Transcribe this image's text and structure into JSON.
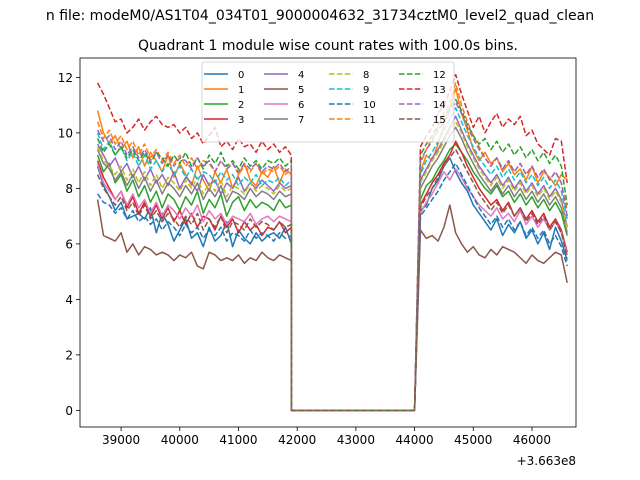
{
  "figure": {
    "suptitle": "n file: modeM0/AS1T04_034T01_9000004632_31734cztM0_level2_quad_clean",
    "title": "Quadrant 1 module wise count rates with 100.0s bins.",
    "offset_label": "+3.663e8"
  },
  "chart_data": {
    "type": "line",
    "title": "Quadrant 1 module wise count rates with 100.0s bins.",
    "xlabel": "",
    "ylabel": "",
    "x_offset": 366300000,
    "xlim": [
      38300,
      46750
    ],
    "ylim": [
      -0.6,
      12.7
    ],
    "x_ticks": [
      39000,
      40000,
      41000,
      42000,
      43000,
      44000,
      45000,
      46000
    ],
    "x_tick_labels": [
      "39000",
      "40000",
      "41000",
      "42000",
      "43000",
      "44000",
      "45000",
      "46000"
    ],
    "y_ticks": [
      0,
      2,
      4,
      6,
      8,
      10,
      12
    ],
    "y_tick_labels": [
      "0",
      "2",
      "4",
      "6",
      "8",
      "10",
      "12"
    ],
    "x_start": 38600,
    "x_step": 100,
    "gap_zero_from": 41900,
    "gap_zero_to": 44000,
    "legend_position": "top-center",
    "series": [
      {
        "name": "0",
        "color": "#1f77b4",
        "dash": "solid",
        "pre": [
          8.8,
          8.1,
          7.7,
          7.2,
          7.5,
          6.9,
          7.0,
          7.1,
          6.9,
          7.3,
          6.4,
          7.1,
          6.7,
          6.1,
          6.5,
          6.9,
          6.2,
          6.4,
          5.9,
          6.6,
          6.1,
          6.3,
          6.8,
          5.9,
          6.5,
          6.2,
          6.0,
          6.4,
          6.1,
          6.3,
          6.4,
          6.2,
          6.6,
          6.0
        ],
        "post": [
          7.2,
          7.4,
          8.0,
          8.3,
          8.8,
          9.1,
          8.6,
          8.2,
          7.9,
          7.4,
          7.1,
          6.8,
          6.5,
          6.9,
          6.3,
          6.7,
          6.4,
          6.8,
          6.2,
          6.5,
          6.0,
          6.4,
          5.8,
          6.6,
          6.1,
          5.4
        ]
      },
      {
        "name": "1",
        "color": "#ff7f0e",
        "dash": "solid",
        "pre": [
          10.8,
          10.0,
          9.6,
          9.9,
          9.4,
          9.7,
          9.1,
          9.5,
          8.8,
          9.3,
          9.0,
          8.6,
          9.2,
          8.4,
          8.9,
          8.5,
          8.1,
          8.8,
          8.3,
          7.9,
          8.6,
          8.2,
          8.7,
          8.0,
          8.5,
          8.9,
          8.3,
          8.1,
          8.6,
          8.4,
          8.8,
          8.2,
          8.7,
          8.5
        ],
        "post": [
          8.6,
          9.2,
          9.0,
          9.6,
          10.3,
          10.9,
          11.6,
          10.7,
          10.1,
          9.4,
          9.0,
          9.3,
          8.9,
          9.1,
          8.6,
          8.9,
          8.5,
          8.7,
          8.3,
          8.8,
          8.2,
          8.6,
          8.4,
          8.1,
          8.5,
          8.3
        ]
      },
      {
        "name": "2",
        "color": "#2ca02c",
        "dash": "solid",
        "pre": [
          9.2,
          8.6,
          8.9,
          8.2,
          8.5,
          7.9,
          8.3,
          7.7,
          8.1,
          7.5,
          7.9,
          7.3,
          7.8,
          7.6,
          7.2,
          7.7,
          7.4,
          7.9,
          7.1,
          7.6,
          7.3,
          7.8,
          7.0,
          7.5,
          7.7,
          7.2,
          7.6,
          7.3,
          7.5,
          7.4,
          7.2,
          7.6,
          7.3,
          7.4
        ],
        "post": [
          7.6,
          8.1,
          8.3,
          8.7,
          9.0,
          9.4,
          9.6,
          9.3,
          9.0,
          8.6,
          8.3,
          8.0,
          7.8,
          8.1,
          7.7,
          7.9,
          7.5,
          7.8,
          7.4,
          7.7,
          7.3,
          7.6,
          7.2,
          7.5,
          7.1,
          6.3
        ]
      },
      {
        "name": "3",
        "color": "#d62728",
        "dash": "solid",
        "pre": [
          9.0,
          8.4,
          8.0,
          7.6,
          7.9,
          7.3,
          7.7,
          7.1,
          7.5,
          7.0,
          7.4,
          6.9,
          7.3,
          6.8,
          7.2,
          6.7,
          7.1,
          6.6,
          7.0,
          6.9,
          6.5,
          7.0,
          6.6,
          6.9,
          6.4,
          6.8,
          6.5,
          6.7,
          6.3,
          6.6,
          6.5,
          6.8,
          6.4,
          6.6
        ],
        "post": [
          7.4,
          7.8,
          8.2,
          8.5,
          8.9,
          9.2,
          9.7,
          9.3,
          8.8,
          8.4,
          8.0,
          7.7,
          7.4,
          7.6,
          7.2,
          7.5,
          7.0,
          7.3,
          6.9,
          7.2,
          6.8,
          7.1,
          6.6,
          6.9,
          6.5,
          5.7
        ]
      },
      {
        "name": "4",
        "color": "#9467bd",
        "dash": "solid",
        "pre": [
          9.6,
          9.2,
          8.8,
          9.1,
          8.6,
          8.9,
          8.4,
          8.8,
          8.3,
          8.7,
          8.2,
          8.5,
          8.1,
          8.6,
          8.0,
          8.4,
          8.2,
          7.9,
          8.5,
          8.1,
          8.3,
          7.8,
          8.2,
          8.0,
          8.4,
          7.9,
          8.2,
          8.0,
          8.3,
          8.1,
          7.9,
          8.2,
          8.0,
          8.1
        ],
        "post": [
          8.3,
          8.7,
          9.1,
          9.4,
          9.8,
          10.2,
          10.6,
          10.1,
          9.6,
          9.2,
          8.8,
          8.5,
          8.2,
          8.5,
          8.1,
          8.4,
          8.0,
          8.3,
          7.9,
          8.2,
          7.8,
          8.1,
          7.7,
          8.0,
          7.6,
          6.6
        ]
      },
      {
        "name": "5",
        "color": "#8c564b",
        "dash": "solid",
        "pre": [
          7.6,
          6.3,
          6.2,
          6.1,
          6.4,
          5.7,
          6.0,
          5.6,
          5.9,
          5.8,
          5.6,
          5.7,
          5.6,
          5.4,
          5.6,
          5.5,
          5.7,
          5.2,
          5.1,
          5.7,
          5.6,
          5.4,
          5.5,
          5.4,
          5.6,
          5.3,
          5.5,
          5.4,
          5.7,
          5.5,
          5.4,
          5.6,
          5.5,
          5.4
        ],
        "post": [
          6.5,
          6.2,
          6.3,
          6.1,
          6.6,
          7.4,
          6.4,
          6.0,
          5.7,
          5.9,
          5.6,
          5.5,
          5.8,
          5.6,
          5.9,
          5.8,
          5.7,
          5.5,
          5.3,
          5.6,
          5.4,
          5.3,
          5.5,
          5.7,
          5.6,
          4.6
        ]
      },
      {
        "name": "6",
        "color": "#e377c2",
        "dash": "solid",
        "pre": [
          8.9,
          8.2,
          7.9,
          7.6,
          7.9,
          7.4,
          7.8,
          7.3,
          7.6,
          7.1,
          7.5,
          7.0,
          7.4,
          7.2,
          6.9,
          7.3,
          7.0,
          7.4,
          6.8,
          7.2,
          6.9,
          7.1,
          6.7,
          7.0,
          6.9,
          6.8,
          7.1,
          6.7,
          6.9,
          7.0,
          6.8,
          7.0,
          6.9,
          6.8
        ],
        "post": [
          7.1,
          7.5,
          7.8,
          8.2,
          8.6,
          8.3,
          8.7,
          8.4,
          8.0,
          7.7,
          7.4,
          7.2,
          7.0,
          7.3,
          6.9,
          7.1,
          6.8,
          7.2,
          6.7,
          7.0,
          6.6,
          6.9,
          6.5,
          6.8,
          6.4,
          5.6
        ]
      },
      {
        "name": "7",
        "color": "#7f7f7f",
        "dash": "solid",
        "pre": [
          9.4,
          8.9,
          8.7,
          8.3,
          8.6,
          8.1,
          8.5,
          8.0,
          8.4,
          7.9,
          8.3,
          7.8,
          8.2,
          8.0,
          7.7,
          8.1,
          7.8,
          8.2,
          7.6,
          8.0,
          7.7,
          8.1,
          7.5,
          7.9,
          7.8,
          7.6,
          8.0,
          7.7,
          7.9,
          7.8,
          7.6,
          7.9,
          7.7,
          7.8
        ],
        "post": [
          8.0,
          8.4,
          8.8,
          9.1,
          9.5,
          9.9,
          10.2,
          9.8,
          9.3,
          8.9,
          8.5,
          8.2,
          7.9,
          8.2,
          7.8,
          8.1,
          7.7,
          8.0,
          7.6,
          7.9,
          7.5,
          7.8,
          7.4,
          7.7,
          7.3,
          6.4
        ]
      },
      {
        "name": "8",
        "color": "#bcbd22",
        "dash": "dashed",
        "pre": [
          9.5,
          9.0,
          8.8,
          8.5,
          8.8,
          8.3,
          8.7,
          8.2,
          8.6,
          8.1,
          8.5,
          8.0,
          8.4,
          8.2,
          7.9,
          8.3,
          8.0,
          8.4,
          7.8,
          8.2,
          7.9,
          8.3,
          7.7,
          8.1,
          8.0,
          7.8,
          8.2,
          7.9,
          8.1,
          8.0,
          7.8,
          8.1,
          7.9,
          8.0
        ],
        "post": [
          8.2,
          8.6,
          9.0,
          9.3,
          9.7,
          10.1,
          10.4,
          10.0,
          9.5,
          9.1,
          8.7,
          8.4,
          8.1,
          8.4,
          8.0,
          8.3,
          7.9,
          8.2,
          7.8,
          8.1,
          7.7,
          8.0,
          7.6,
          7.9,
          7.5,
          6.5
        ]
      },
      {
        "name": "9",
        "color": "#17becf",
        "dash": "dashed",
        "pre": [
          10.0,
          9.4,
          9.7,
          9.2,
          9.5,
          9.0,
          9.3,
          8.8,
          9.2,
          8.7,
          9.0,
          8.6,
          8.9,
          8.5,
          8.8,
          8.4,
          8.7,
          8.3,
          8.6,
          8.5,
          8.2,
          8.6,
          8.3,
          8.5,
          8.1,
          8.4,
          8.2,
          8.5,
          8.1,
          8.3,
          8.2,
          8.4,
          8.1,
          8.3
        ],
        "post": [
          8.5,
          9.0,
          9.3,
          9.7,
          10.1,
          10.5,
          10.9,
          10.4,
          9.9,
          9.5,
          9.1,
          8.8,
          8.5,
          8.8,
          8.4,
          8.7,
          8.3,
          8.6,
          8.2,
          8.5,
          8.1,
          8.4,
          8.0,
          8.3,
          7.9,
          6.9
        ]
      },
      {
        "name": "10",
        "color": "#1f77b4",
        "dash": "dashed",
        "pre": [
          7.8,
          7.5,
          7.4,
          7.1,
          7.3,
          6.9,
          7.2,
          6.8,
          7.0,
          6.7,
          6.9,
          6.5,
          6.8,
          6.6,
          6.3,
          6.7,
          6.4,
          6.6,
          6.2,
          6.5,
          6.3,
          6.6,
          6.1,
          6.4,
          6.3,
          6.1,
          6.5,
          6.2,
          6.4,
          6.3,
          6.1,
          6.4,
          6.2,
          6.3
        ],
        "post": [
          7.0,
          7.3,
          7.6,
          7.9,
          8.3,
          8.6,
          8.9,
          8.5,
          8.1,
          7.7,
          7.3,
          7.0,
          6.7,
          7.0,
          6.6,
          6.9,
          6.5,
          6.8,
          6.3,
          6.6,
          6.2,
          6.5,
          6.0,
          6.3,
          5.9,
          5.2
        ]
      },
      {
        "name": "11",
        "color": "#ff7f0e",
        "dash": "dashed",
        "pre": [
          10.4,
          9.8,
          10.1,
          9.6,
          9.9,
          9.4,
          9.7,
          9.2,
          9.6,
          9.1,
          9.4,
          9.0,
          9.3,
          8.9,
          9.2,
          8.8,
          9.1,
          8.7,
          9.0,
          8.9,
          8.6,
          9.0,
          8.7,
          8.9,
          8.5,
          8.8,
          8.6,
          8.9,
          8.5,
          8.7,
          8.6,
          8.8,
          8.5,
          8.7
        ],
        "post": [
          8.9,
          9.4,
          9.8,
          10.2,
          10.7,
          11.1,
          11.8,
          11.0,
          10.4,
          9.9,
          9.5,
          9.1,
          8.8,
          9.1,
          8.7,
          9.0,
          8.6,
          8.9,
          8.5,
          8.8,
          8.4,
          8.7,
          8.3,
          8.6,
          8.2,
          7.2
        ]
      },
      {
        "name": "12",
        "color": "#2ca02c",
        "dash": "dashed",
        "pre": [
          9.8,
          9.3,
          9.6,
          9.2,
          9.5,
          9.1,
          9.4,
          9.0,
          9.3,
          8.9,
          9.3,
          9.1,
          8.8,
          9.2,
          8.9,
          9.3,
          8.8,
          9.1,
          8.7,
          9.2,
          8.9,
          9.3,
          8.8,
          9.0,
          8.7,
          9.1,
          8.8,
          9.0,
          8.7,
          9.0,
          8.9,
          9.1,
          8.8,
          9.0
        ],
        "post": [
          9.2,
          9.6,
          9.9,
          10.3,
          10.6,
          10.9,
          11.2,
          10.8,
          10.3,
          9.9,
          9.6,
          9.8,
          9.4,
          9.7,
          9.3,
          9.6,
          9.2,
          9.5,
          9.1,
          9.4,
          9.0,
          9.3,
          8.9,
          9.2,
          8.8,
          7.4
        ]
      },
      {
        "name": "13",
        "color": "#d62728",
        "dash": "dashed",
        "pre": [
          11.8,
          11.4,
          10.9,
          10.4,
          10.5,
          10.0,
          10.2,
          10.5,
          10.1,
          10.4,
          10.6,
          10.3,
          10.2,
          10.3,
          10.0,
          10.2,
          9.8,
          10.0,
          9.6,
          9.9,
          10.2,
          9.5,
          9.7,
          9.4,
          9.8,
          9.5,
          9.6,
          9.3,
          9.7,
          9.4,
          9.6,
          9.3,
          9.5,
          9.2
        ],
        "post": [
          9.5,
          9.9,
          10.2,
          10.7,
          11.0,
          11.5,
          12.1,
          11.4,
          10.8,
          10.2,
          10.6,
          10.0,
          10.4,
          10.7,
          10.2,
          10.5,
          10.3,
          10.6,
          9.9,
          10.1,
          9.6,
          9.4,
          9.2,
          9.8,
          9.7,
          8.2
        ]
      },
      {
        "name": "14",
        "color": "#9467bd",
        "dash": "dashed",
        "pre": [
          10.1,
          9.7,
          9.9,
          9.4,
          9.7,
          9.2,
          9.5,
          9.1,
          9.4,
          9.0,
          9.3,
          8.9,
          9.2,
          8.8,
          9.1,
          9.0,
          8.7,
          9.1,
          8.8,
          9.0,
          8.6,
          9.0,
          8.7,
          8.9,
          8.6,
          8.9,
          8.7,
          8.9,
          8.6,
          8.8,
          8.7,
          8.9,
          8.6,
          8.8
        ],
        "post": [
          9.0,
          9.4,
          9.7,
          10.1,
          10.4,
          10.8,
          11.1,
          10.7,
          10.2,
          9.8,
          9.4,
          9.1,
          8.8,
          9.1,
          8.7,
          9.0,
          8.6,
          8.9,
          8.5,
          8.8,
          8.4,
          8.7,
          8.3,
          8.6,
          8.2,
          7.0
        ]
      },
      {
        "name": "15",
        "color": "#8c564b",
        "dash": "dashed",
        "pre": [
          8.5,
          8.0,
          7.7,
          7.4,
          7.7,
          7.2,
          7.5,
          7.0,
          7.4,
          6.9,
          7.2,
          6.8,
          7.1,
          6.9,
          6.6,
          7.0,
          6.7,
          7.1,
          6.5,
          6.9,
          6.6,
          7.0,
          6.4,
          6.8,
          6.7,
          6.5,
          6.9,
          6.6,
          6.8,
          6.7,
          6.5,
          6.8,
          6.6,
          6.7
        ],
        "post": [
          7.3,
          7.7,
          8.0,
          8.4,
          8.8,
          9.1,
          9.4,
          9.0,
          8.6,
          8.2,
          7.8,
          7.5,
          7.2,
          7.5,
          7.1,
          7.4,
          7.0,
          7.3,
          6.8,
          7.1,
          6.7,
          7.0,
          6.5,
          6.8,
          6.4,
          5.5
        ]
      }
    ]
  }
}
